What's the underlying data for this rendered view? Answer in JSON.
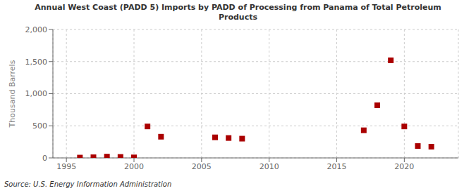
{
  "chart_data": {
    "type": "scatter",
    "title": "Annual West Coast (PADD 5) Imports by PADD of Processing from Panama of Total Petroleum\nProducts",
    "ylabel": "Thousand Barrels",
    "annotations": [
      "Source: U.S. Energy Information Administration"
    ],
    "x": [
      1996,
      1997,
      1998,
      1999,
      2000,
      2001,
      2002,
      2006,
      2007,
      2008,
      2017,
      2018,
      2019,
      2020,
      2021,
      2022
    ],
    "values": [
      5,
      10,
      20,
      15,
      8,
      490,
      330,
      320,
      310,
      300,
      430,
      820,
      1520,
      490,
      185,
      175
    ],
    "color": "#aa0000",
    "marker": "square",
    "xlim": [
      1994,
      2024
    ],
    "ylim": [
      0,
      2000
    ],
    "xticks": [
      1995,
      2000,
      2005,
      2010,
      2015,
      2020
    ],
    "yticks": [
      0,
      500,
      {
        "value": 1000,
        "label": "1,000"
      },
      {
        "value": 1500,
        "label": "1,500"
      },
      {
        "value": 2000,
        "label": "2,000"
      }
    ],
    "grid": true
  }
}
